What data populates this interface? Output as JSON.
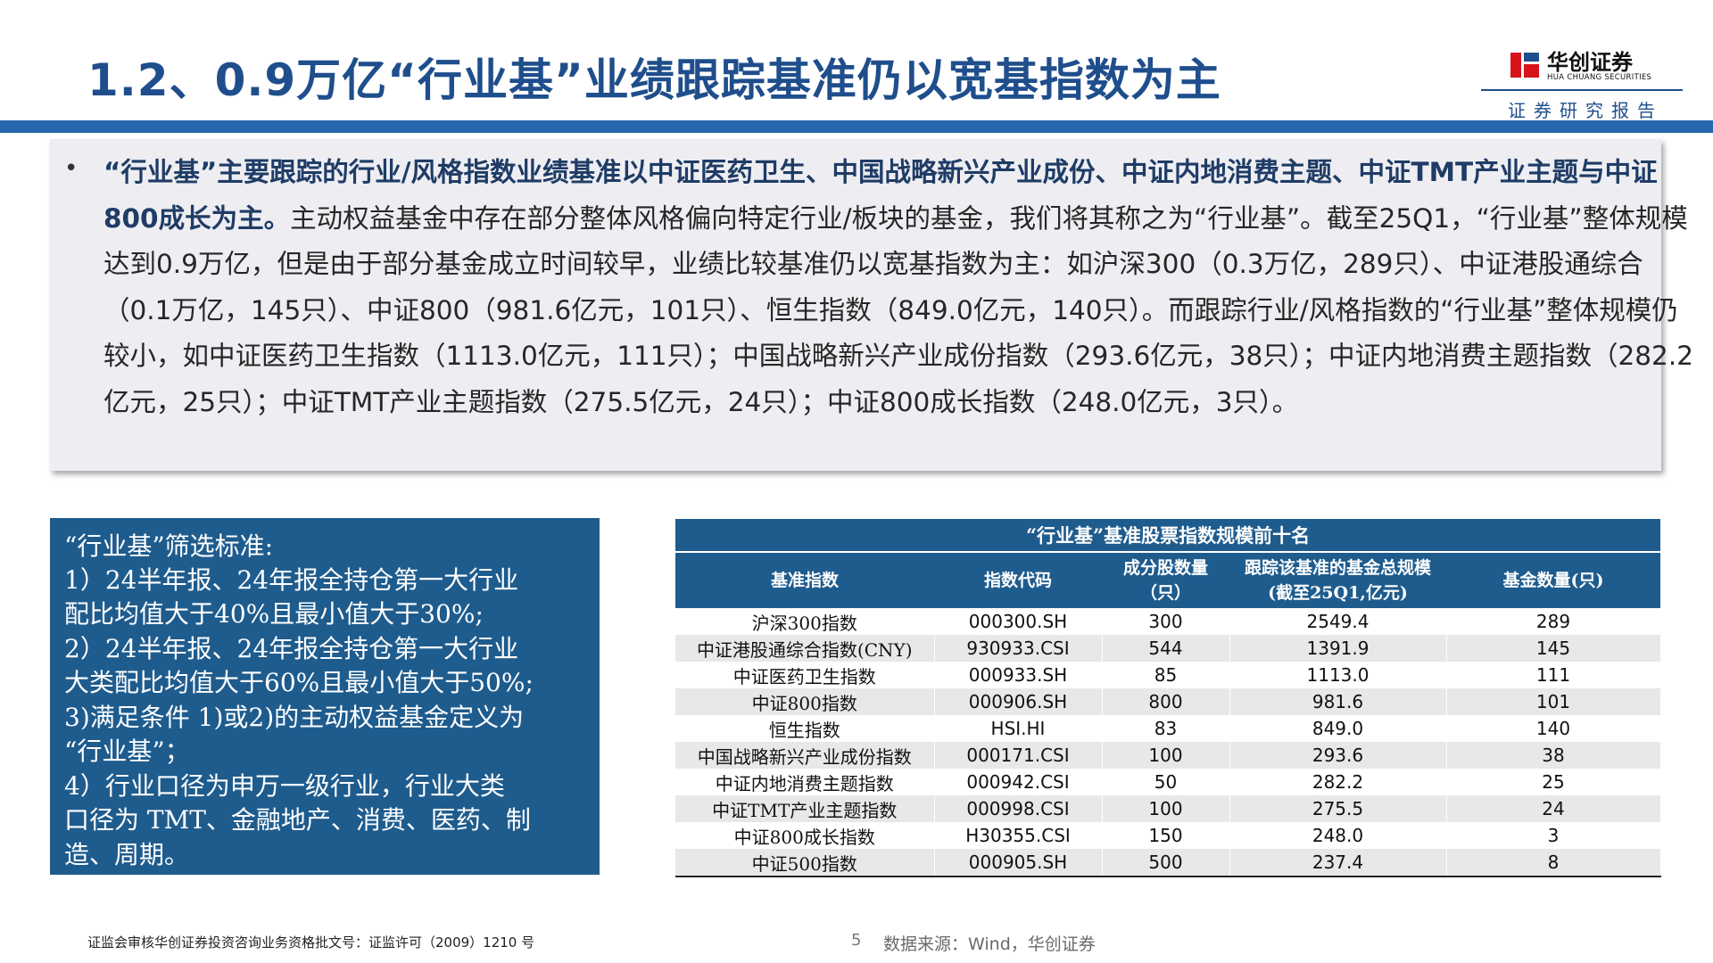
{
  "header": {
    "title": "1.2、0.9万亿“行业基”业绩跟踪基准仍以宽基指数为主",
    "logo_cn": "华创证券",
    "logo_en": "HUA CHUANG SECURITIES",
    "report_type": "证券研究报告"
  },
  "summary": {
    "bullet": "•",
    "bold_lead": "“行业基”主要跟踪的行业/风格指数业绩基准以中证医药卫生、中国战略新兴产业成份、中证内地消费主题、中证TMT产业主题与中证800成长为主。",
    "body": "主动权益基金中存在部分整体风格偏向特定行业/板块的基金，我们将其称之为“行业基”。截至25Q1，“行业基”整体规模达到0.9万亿，但是由于部分基金成立时间较早，业绩比较基准仍以宽基指数为主：如沪深300（0.3万亿，289只）、中证港股通综合（0.1万亿，145只）、中证800（981.6亿元，101只）、恒生指数（849.0亿元，140只）。而跟踪行业/风格指数的“行业基”整体规模仍较小，如中证医药卫生指数（1113.0亿元，111只）；中国战略新兴产业成份指数（293.6亿元，38只）；中证内地消费主题指数（282.2亿元，25只）；中证TMT产业主题指数（275.5亿元，24只）；中证800成长指数（248.0亿元，3只）。"
  },
  "criteria": {
    "lines": [
      "“行业基”筛选标准:",
      "1）24半年报、24年报全持仓第一大行业",
      "配比均值大于40%且最小值大于30%;",
      "2）24半年报、24年报全持仓第一大行业",
      "大类配比均值大于60%且最小值大于50%;",
      "3)满足条件 1)或2)的主动权益基金定义为",
      "“行业基”；",
      "4）行业口径为申万一级行业，行业大类",
      "口径为 TMT、金融地产、消费、医药、制",
      "造、周期。"
    ]
  },
  "table": {
    "caption": "“行业基”基准股票指数规模前十名",
    "headers": [
      "基准指数",
      "指数代码",
      "成分股数量（只）",
      "跟踪该基准的基金总规模(截至25Q1,亿元)",
      "基金数量(只)"
    ],
    "rows": [
      [
        "沪深300指数",
        "000300.SH",
        "300",
        "2549.4",
        "289"
      ],
      [
        "中证港股通综合指数(CNY)",
        "930933.CSI",
        "544",
        "1391.9",
        "145"
      ],
      [
        "中证医药卫生指数",
        "000933.SH",
        "85",
        "1113.0",
        "111"
      ],
      [
        "中证800指数",
        "000906.SH",
        "800",
        "981.6",
        "101"
      ],
      [
        "恒生指数",
        "HSI.HI",
        "83",
        "849.0",
        "140"
      ],
      [
        "中国战略新兴产业成份指数",
        "000171.CSI",
        "100",
        "293.6",
        "38"
      ],
      [
        "中证内地消费主题指数",
        "000942.CSI",
        "50",
        "282.2",
        "25"
      ],
      [
        "中证TMT产业主题指数",
        "000998.CSI",
        "100",
        "275.5",
        "24"
      ],
      [
        "中证800成长指数",
        "H30355.CSI",
        "150",
        "248.0",
        "3"
      ],
      [
        "中证500指数",
        "000905.SH",
        "500",
        "237.4",
        "8"
      ]
    ]
  },
  "footer": {
    "license": "证监会审核华创证券投资咨询业务资格批文号：证监许可（2009）1210 号",
    "page": "5",
    "source": "数据来源：Wind，华创证券"
  },
  "colors": {
    "title": "#1f4e8c",
    "band": "#2765ad",
    "panel": "#1f5c8e",
    "logo_red": "#d7141a"
  }
}
